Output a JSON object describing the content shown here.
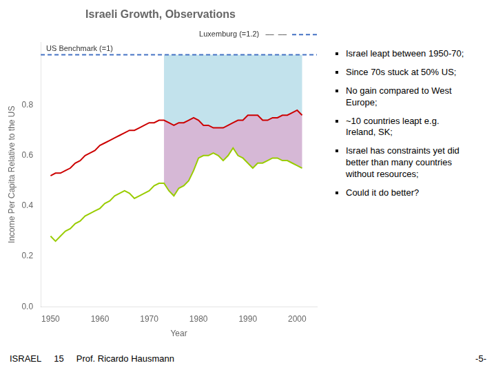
{
  "chart_data": {
    "type": "line",
    "title": "Israeli Growth, Observations",
    "xlabel": "Year",
    "ylabel": "Income Per Capita Relative to the US",
    "x": [
      1950,
      1951,
      1952,
      1953,
      1954,
      1955,
      1956,
      1957,
      1958,
      1959,
      1960,
      1961,
      1962,
      1963,
      1964,
      1965,
      1966,
      1967,
      1968,
      1969,
      1970,
      1971,
      1972,
      1973,
      1974,
      1975,
      1976,
      1977,
      1978,
      1979,
      1980,
      1981,
      1982,
      1983,
      1984,
      1985,
      1986,
      1987,
      1988,
      1989,
      1990,
      1991,
      1992,
      1993,
      1994,
      1995,
      1996,
      1997,
      1998,
      1999,
      2000,
      2001
    ],
    "series": [
      {
        "color": "#cc0000",
        "values": [
          0.52,
          0.53,
          0.53,
          0.54,
          0.55,
          0.57,
          0.58,
          0.6,
          0.61,
          0.62,
          0.64,
          0.65,
          0.66,
          0.67,
          0.68,
          0.69,
          0.7,
          0.7,
          0.71,
          0.72,
          0.73,
          0.73,
          0.74,
          0.74,
          0.73,
          0.72,
          0.73,
          0.73,
          0.74,
          0.75,
          0.74,
          0.72,
          0.72,
          0.71,
          0.71,
          0.71,
          0.72,
          0.73,
          0.74,
          0.74,
          0.76,
          0.76,
          0.76,
          0.74,
          0.74,
          0.75,
          0.75,
          0.76,
          0.76,
          0.77,
          0.78,
          0.76
        ]
      },
      {
        "color": "#99cc00",
        "values": [
          0.28,
          0.26,
          0.28,
          0.3,
          0.31,
          0.33,
          0.34,
          0.36,
          0.37,
          0.38,
          0.39,
          0.41,
          0.42,
          0.44,
          0.45,
          0.46,
          0.45,
          0.43,
          0.44,
          0.45,
          0.46,
          0.48,
          0.49,
          0.49,
          0.46,
          0.44,
          0.47,
          0.48,
          0.5,
          0.54,
          0.59,
          0.6,
          0.6,
          0.61,
          0.6,
          0.58,
          0.6,
          0.63,
          0.6,
          0.59,
          0.57,
          0.55,
          0.57,
          0.57,
          0.58,
          0.59,
          0.59,
          0.58,
          0.58,
          0.57,
          0.56,
          0.55
        ]
      }
    ],
    "benchmark": {
      "value": 1.0,
      "label": "US Benchmark (=1)",
      "color": "#4472c4",
      "line_style": "dashed"
    },
    "reference_note": {
      "label": "Luxemburg (=1.2)   ‒‒  ‒‒",
      "color": "#4472c4",
      "line_style": "dashed"
    },
    "shade": {
      "from": 1973,
      "colors": [
        "#add8e6",
        "#c8a0c8"
      ]
    },
    "xlim": [
      1948,
      2004
    ],
    "xticks": [
      1950,
      1960,
      1970,
      1980,
      1990,
      2000
    ],
    "ylim": [
      0,
      1.05
    ],
    "yticks": [
      {
        "value": 0,
        "label": "0.0"
      },
      0.2,
      0.4,
      0.6,
      0.8
    ],
    "grid": false,
    "notes": [
      "Israel leapt between 1950-70;",
      "Since 70s stuck at 50% US;",
      "No gain compared to West\nEurope;",
      "~10 countries leapt e.g.\nIreland, SK;",
      "Israel has constraints yet did\nbetter than many countries\nwithout resources;",
      "Could it do better?"
    ],
    "footer": [
      "ISRAEL",
      "15",
      "Prof. Ricardo Hausmann",
      "-5-"
    ]
  }
}
